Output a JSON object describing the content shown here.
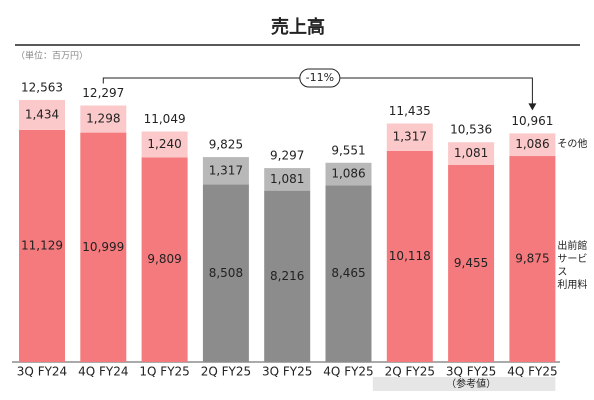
{
  "chart_data": {
    "type": "stacked_bar",
    "title": "売上高",
    "subtitle": "（単位：百万円）",
    "categories": [
      "3Q FY24",
      "4Q FY24",
      "1Q FY25",
      "2Q FY25",
      "3Q FY25",
      "4Q FY25",
      "2Q FY25",
      "3Q FY25",
      "4Q FY25"
    ],
    "category_note": "（参考値）",
    "series": [
      {
        "name": "出前館\nサービス\n利用料",
        "colors": [
          "#f47a7e",
          "#f47a7e",
          "#f47a7e",
          "#8c8c8c",
          "#8c8c8c",
          "#8c8c8c",
          "#f47a7e",
          "#f47a7e",
          "#f47a7e"
        ],
        "values": [
          11129,
          10999,
          9809,
          8508,
          8216,
          8465,
          10118,
          9455,
          9875
        ],
        "value_labels": [
          "11,129",
          "10,999",
          "9,809",
          "8,508",
          "8,216",
          "8,465",
          "10,118",
          "9,455",
          "9,875"
        ]
      },
      {
        "name": "その他",
        "colors": [
          "#fbc9ca",
          "#fbc9ca",
          "#fbc9ca",
          "#b8b8b8",
          "#b8b8b8",
          "#b8b8b8",
          "#fbc9ca",
          "#fbc9ca",
          "#fbc9ca"
        ],
        "values": [
          1434,
          1298,
          1240,
          1317,
          1081,
          1086,
          1317,
          1081,
          1086
        ],
        "value_labels": [
          "1,434",
          "1,298",
          "1,240",
          "1,317",
          "1,081",
          "1,086",
          "1,317",
          "1,081",
          "1,086"
        ]
      }
    ],
    "totals": [
      12563,
      12297,
      11049,
      9825,
      9297,
      9551,
      11435,
      10536,
      10961
    ],
    "total_labels": [
      "12,563",
      "12,297",
      "11,049",
      "9,825",
      "9,297",
      "9,551",
      "11,435",
      "10,536",
      "10,961"
    ],
    "annotation": {
      "text": "-11%",
      "from": 1,
      "to": 8
    },
    "ylim": [
      0,
      14000
    ]
  }
}
